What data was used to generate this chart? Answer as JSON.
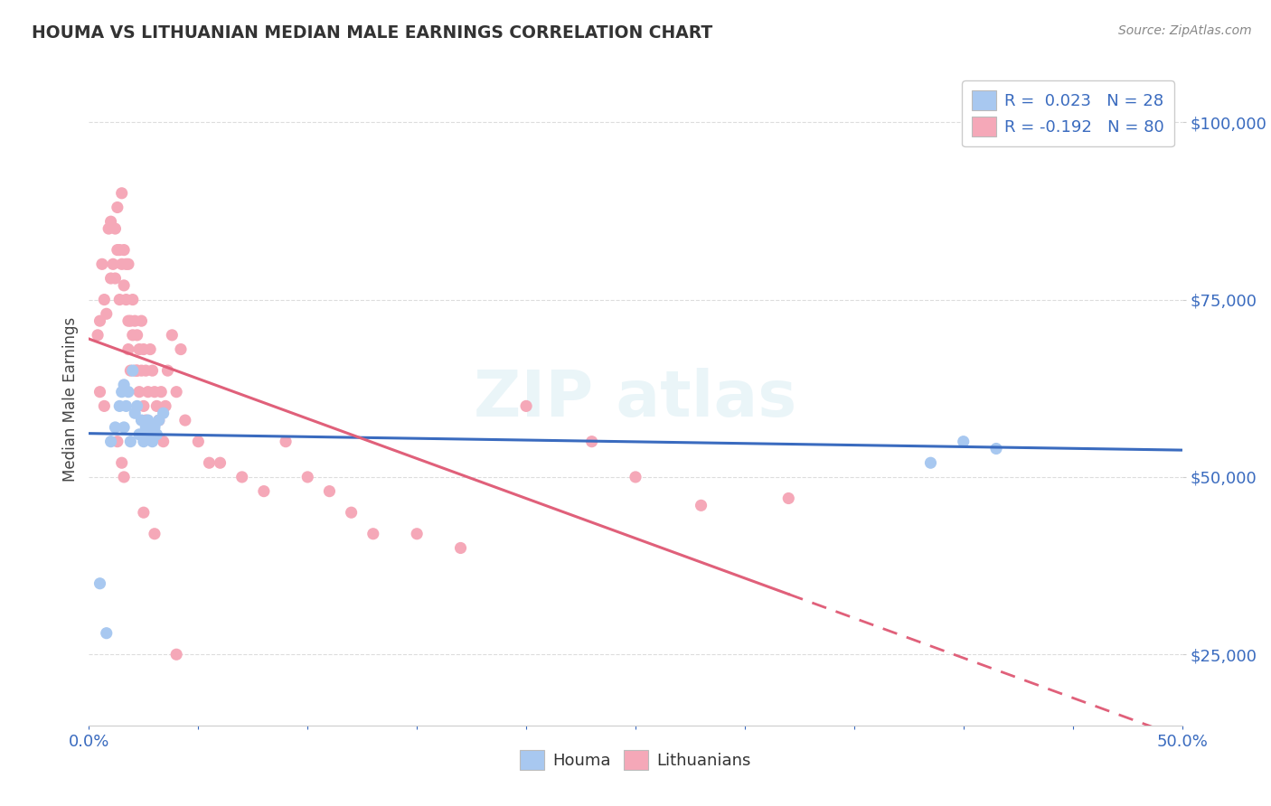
{
  "title": "HOUMA VS LITHUANIAN MEDIAN MALE EARNINGS CORRELATION CHART",
  "source": "Source: ZipAtlas.com",
  "ylabel": "Median Male Earnings",
  "xlim": [
    0.0,
    0.5
  ],
  "ylim": [
    15000,
    107000
  ],
  "yticks": [
    25000,
    50000,
    75000,
    100000
  ],
  "ytick_labels": [
    "$25,000",
    "$50,000",
    "$75,000",
    "$100,000"
  ],
  "background_color": "#ffffff",
  "grid_color": "#dddddd",
  "houma_color": "#a8c8f0",
  "houma_line_color": "#3a6bbf",
  "lithuanian_color": "#f5a8b8",
  "lithuanian_line_color": "#e0607a",
  "legend_label1": "R =  0.023   N = 28",
  "legend_label2": "R = -0.192   N = 80",
  "houma_x": [
    0.005,
    0.01,
    0.012,
    0.014,
    0.015,
    0.016,
    0.016,
    0.017,
    0.018,
    0.019,
    0.02,
    0.021,
    0.022,
    0.023,
    0.024,
    0.025,
    0.026,
    0.027,
    0.028,
    0.029,
    0.03,
    0.031,
    0.032,
    0.034,
    0.008,
    0.385,
    0.4,
    0.415
  ],
  "houma_y": [
    35000,
    55000,
    57000,
    60000,
    62000,
    63000,
    57000,
    60000,
    62000,
    55000,
    65000,
    59000,
    60000,
    56000,
    58000,
    55000,
    57000,
    58000,
    56000,
    55000,
    57000,
    56000,
    58000,
    59000,
    28000,
    52000,
    55000,
    54000
  ],
  "lithuanian_x": [
    0.004,
    0.005,
    0.006,
    0.007,
    0.008,
    0.009,
    0.01,
    0.01,
    0.011,
    0.012,
    0.012,
    0.013,
    0.013,
    0.014,
    0.014,
    0.015,
    0.015,
    0.016,
    0.016,
    0.017,
    0.017,
    0.018,
    0.018,
    0.018,
    0.019,
    0.019,
    0.02,
    0.02,
    0.021,
    0.021,
    0.022,
    0.022,
    0.023,
    0.023,
    0.024,
    0.024,
    0.025,
    0.025,
    0.026,
    0.026,
    0.027,
    0.028,
    0.029,
    0.03,
    0.031,
    0.032,
    0.033,
    0.034,
    0.035,
    0.036,
    0.038,
    0.04,
    0.042,
    0.044,
    0.05,
    0.055,
    0.06,
    0.07,
    0.08,
    0.09,
    0.1,
    0.11,
    0.12,
    0.13,
    0.15,
    0.17,
    0.2,
    0.23,
    0.25,
    0.28,
    0.005,
    0.007,
    0.013,
    0.015,
    0.016,
    0.022,
    0.025,
    0.03,
    0.04,
    0.32
  ],
  "lithuanian_y": [
    70000,
    72000,
    80000,
    75000,
    73000,
    85000,
    86000,
    78000,
    80000,
    85000,
    78000,
    88000,
    82000,
    82000,
    75000,
    90000,
    80000,
    82000,
    77000,
    80000,
    75000,
    80000,
    72000,
    68000,
    72000,
    65000,
    75000,
    70000,
    72000,
    65000,
    70000,
    65000,
    68000,
    62000,
    72000,
    65000,
    68000,
    60000,
    65000,
    58000,
    62000,
    68000,
    65000,
    62000,
    60000,
    58000,
    62000,
    55000,
    60000,
    65000,
    70000,
    62000,
    68000,
    58000,
    55000,
    52000,
    52000,
    50000,
    48000,
    55000,
    50000,
    48000,
    45000,
    42000,
    42000,
    40000,
    60000,
    55000,
    50000,
    46000,
    62000,
    60000,
    55000,
    52000,
    50000,
    65000,
    45000,
    42000,
    25000,
    47000
  ]
}
